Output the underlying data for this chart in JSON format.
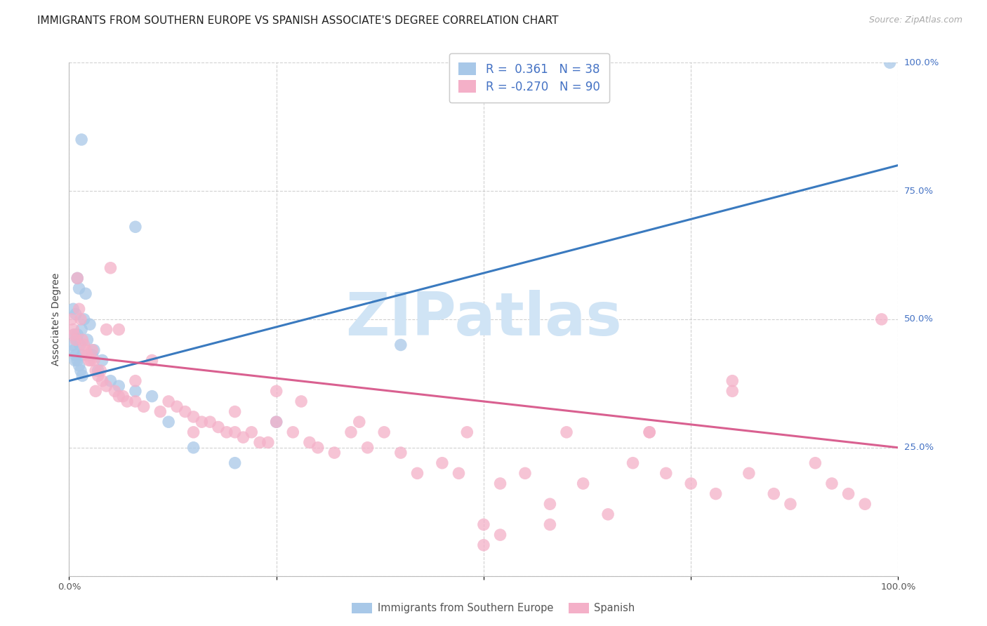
{
  "title": "IMMIGRANTS FROM SOUTHERN EUROPE VS SPANISH ASSOCIATE'S DEGREE CORRELATION CHART",
  "source": "Source: ZipAtlas.com",
  "ylabel": "Associate's Degree",
  "watermark": "ZIPatlas",
  "R_blue": 0.361,
  "N_blue": 38,
  "R_pink": -0.27,
  "N_pink": 90,
  "blue_color": "#a8c8e8",
  "pink_color": "#f4b0c8",
  "blue_line_color": "#3a7abf",
  "pink_line_color": "#d96090",
  "legend_labels": [
    "Immigrants from Southern Europe",
    "Spanish"
  ],
  "blue_scatter_x": [
    1.5,
    8.0,
    1.0,
    1.2,
    2.0,
    0.5,
    0.8,
    1.8,
    2.5,
    1.5,
    0.6,
    1.0,
    2.2,
    0.9,
    1.3,
    3.0,
    2.8,
    1.6,
    0.7,
    4.0,
    3.5,
    5.0,
    6.0,
    8.0,
    10.0,
    12.0,
    15.0,
    20.0,
    25.0,
    40.0,
    0.4,
    0.6,
    0.8,
    1.0,
    1.2,
    1.4,
    1.6,
    99.0
  ],
  "blue_scatter_y": [
    85.0,
    68.0,
    58.0,
    56.0,
    55.0,
    52.0,
    51.0,
    50.0,
    49.0,
    48.0,
    47.0,
    47.0,
    46.0,
    46.0,
    45.0,
    44.0,
    43.0,
    43.0,
    42.0,
    42.0,
    40.0,
    38.0,
    37.0,
    36.0,
    35.0,
    30.0,
    25.0,
    22.0,
    30.0,
    45.0,
    45.0,
    44.0,
    43.0,
    42.0,
    41.0,
    40.0,
    39.0,
    100.0
  ],
  "pink_scatter_x": [
    0.3,
    0.5,
    0.6,
    0.8,
    1.0,
    1.2,
    1.4,
    1.6,
    1.8,
    2.0,
    2.2,
    2.4,
    2.6,
    2.8,
    3.0,
    3.2,
    3.5,
    3.8,
    4.0,
    4.5,
    5.0,
    5.5,
    6.0,
    6.5,
    7.0,
    8.0,
    9.0,
    10.0,
    11.0,
    12.0,
    13.0,
    14.0,
    15.0,
    16.0,
    17.0,
    18.0,
    19.0,
    20.0,
    21.0,
    22.0,
    23.0,
    24.0,
    25.0,
    27.0,
    29.0,
    30.0,
    32.0,
    34.0,
    36.0,
    38.0,
    40.0,
    42.0,
    45.0,
    47.0,
    50.0,
    52.0,
    55.0,
    58.0,
    60.0,
    62.0,
    65.0,
    68.0,
    70.0,
    72.0,
    75.0,
    78.0,
    80.0,
    82.0,
    85.0,
    87.0,
    90.0,
    92.0,
    94.0,
    96.0,
    98.0,
    8.0,
    4.5,
    3.2,
    6.0,
    15.0,
    20.0,
    25.0,
    50.0,
    70.0,
    80.0,
    52.0,
    58.0,
    28.0,
    35.0,
    48.0
  ],
  "pink_scatter_y": [
    50.0,
    48.0,
    47.0,
    46.0,
    58.0,
    52.0,
    50.0,
    46.0,
    45.0,
    44.0,
    43.0,
    42.0,
    42.0,
    44.0,
    42.0,
    40.0,
    39.0,
    40.0,
    38.0,
    37.0,
    60.0,
    36.0,
    35.0,
    35.0,
    34.0,
    34.0,
    33.0,
    42.0,
    32.0,
    34.0,
    33.0,
    32.0,
    31.0,
    30.0,
    30.0,
    29.0,
    28.0,
    28.0,
    27.0,
    28.0,
    26.0,
    26.0,
    30.0,
    28.0,
    26.0,
    25.0,
    24.0,
    28.0,
    25.0,
    28.0,
    24.0,
    20.0,
    22.0,
    20.0,
    10.0,
    18.0,
    20.0,
    14.0,
    28.0,
    18.0,
    12.0,
    22.0,
    28.0,
    20.0,
    18.0,
    16.0,
    38.0,
    20.0,
    16.0,
    14.0,
    22.0,
    18.0,
    16.0,
    14.0,
    50.0,
    38.0,
    48.0,
    36.0,
    48.0,
    28.0,
    32.0,
    36.0,
    6.0,
    28.0,
    36.0,
    8.0,
    10.0,
    34.0,
    30.0,
    28.0
  ],
  "xlim": [
    0,
    100
  ],
  "ylim": [
    0,
    100
  ],
  "blue_line_x0": 0,
  "blue_line_y0": 38,
  "blue_line_x1": 100,
  "blue_line_y1": 80,
  "pink_line_x0": 0,
  "pink_line_y0": 43,
  "pink_line_x1": 100,
  "pink_line_y1": 25,
  "right_yticks": [
    25,
    50,
    75,
    100
  ],
  "right_ytick_labels": [
    "25.0%",
    "50.0%",
    "75.0%",
    "100.0%"
  ],
  "grid_color": "#cccccc",
  "bg_color": "#ffffff",
  "title_fontsize": 11,
  "ylabel_fontsize": 10,
  "tick_fontsize": 9.5,
  "legend_fontsize": 10.5,
  "source_fontsize": 9,
  "right_label_color": "#4472c4",
  "watermark_color": "#d0e4f5"
}
